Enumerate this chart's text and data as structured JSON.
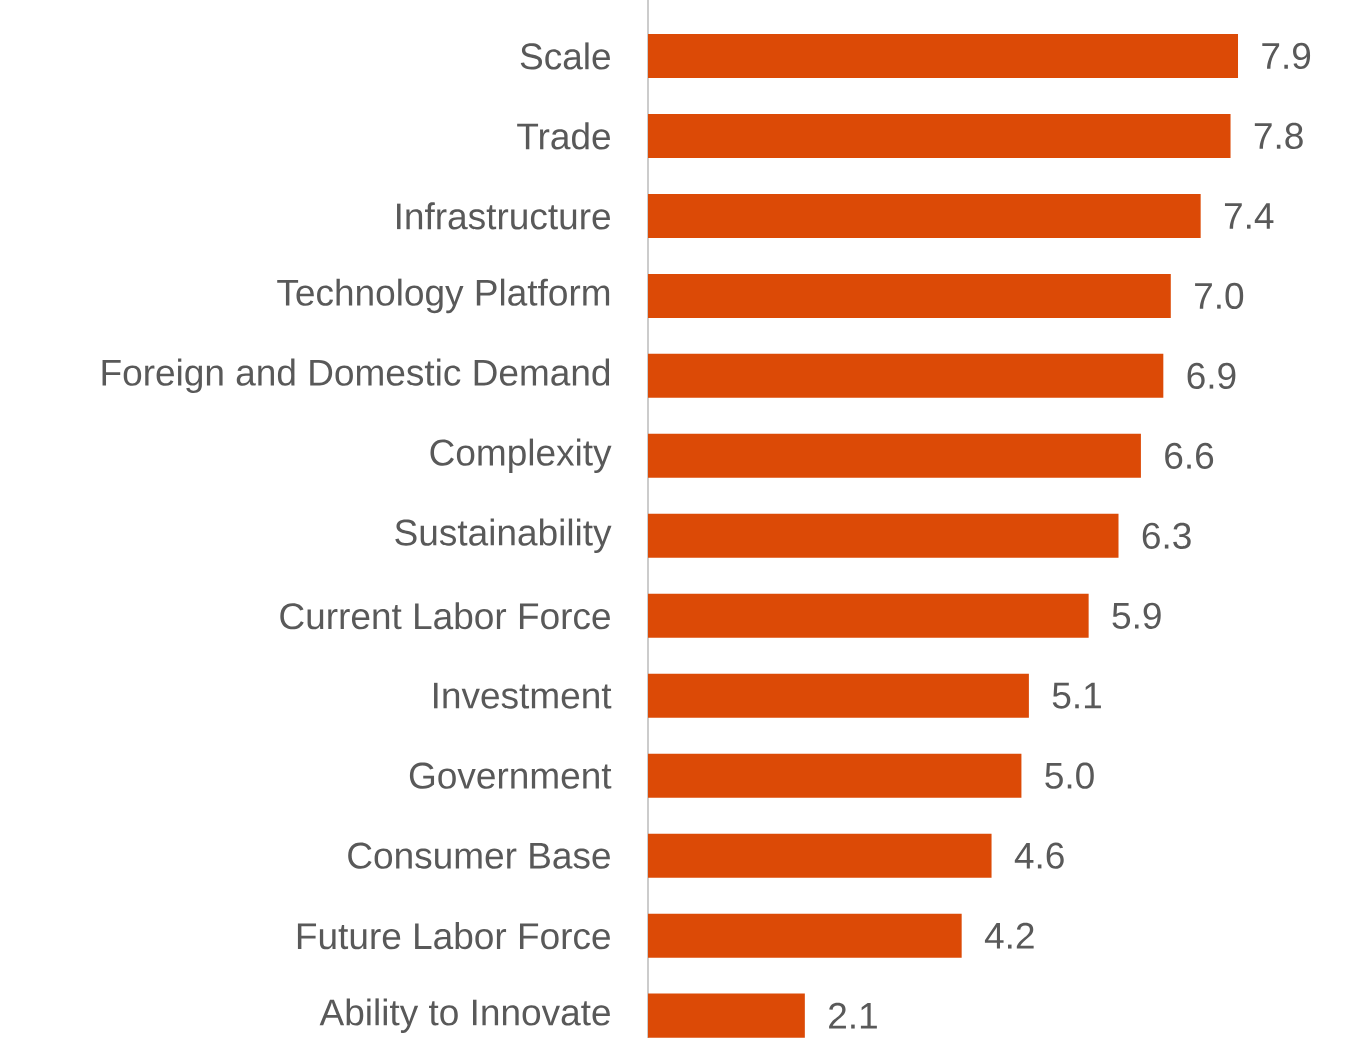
{
  "chart_data": {
    "type": "bar",
    "orientation": "horizontal",
    "categories": [
      "Scale",
      "Trade",
      "Infrastructure",
      "Technology Platform",
      "Foreign and Domestic Demand",
      "Complexity",
      "Sustainability",
      "Current Labor Force",
      "Investment",
      "Government",
      "Consumer Base",
      "Future Labor Force",
      "Ability to Innovate"
    ],
    "values": [
      7.9,
      7.8,
      7.4,
      7.0,
      6.9,
      6.6,
      6.3,
      5.9,
      5.1,
      5.0,
      4.6,
      4.2,
      2.1
    ],
    "value_labels": [
      "7.9",
      "7.8",
      "7.4",
      "7.0",
      "6.9",
      "6.6",
      "6.3",
      "5.9",
      "5.1",
      "5.0",
      "4.6",
      "4.2",
      "2.1"
    ],
    "color": "#dc4a06"
  }
}
